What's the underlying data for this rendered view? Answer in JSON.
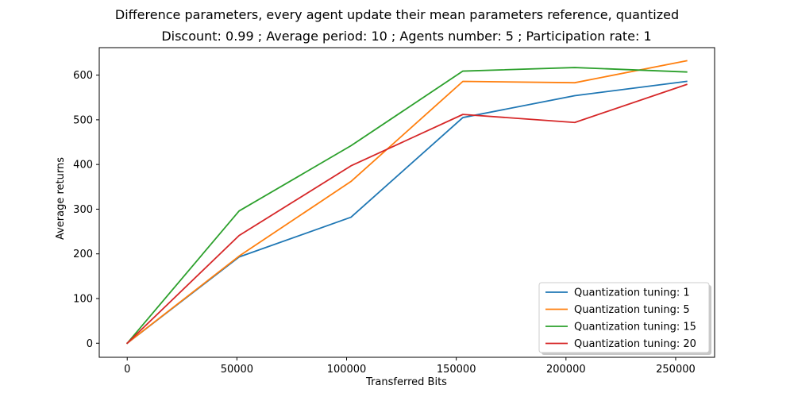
{
  "chart_data": {
    "type": "line",
    "suptitle": "Difference parameters, every agent update their mean parameters reference, quantized",
    "title": "Discount: 0.99 ; Average period: 10 ; Agents number: 5 ; Participation rate: 1",
    "xlabel": "Transferred Bits",
    "ylabel": "Average returns",
    "xlim": [
      -12750,
      267750
    ],
    "ylim": [
      -31.5,
      661.5
    ],
    "xticks": [
      0,
      50000,
      100000,
      150000,
      200000,
      250000
    ],
    "xtick_labels": [
      "0",
      "50000",
      "100000",
      "150000",
      "200000",
      "250000"
    ],
    "yticks": [
      0,
      100,
      200,
      300,
      400,
      500,
      600
    ],
    "ytick_labels": [
      "0",
      "100",
      "200",
      "300",
      "400",
      "500",
      "600"
    ],
    "grid": false,
    "legend_position": "lower-right",
    "x": [
      0,
      51000,
      102000,
      153000,
      204000,
      255000
    ],
    "series": [
      {
        "name": "Quantization tuning: 1",
        "color": "#1f77b4",
        "values": [
          0,
          193,
          282,
          505,
          554,
          586
        ]
      },
      {
        "name": "Quantization tuning: 5",
        "color": "#ff7f0e",
        "values": [
          0,
          195,
          362,
          586,
          583,
          632
        ]
      },
      {
        "name": "Quantization tuning: 15",
        "color": "#2ca02c",
        "values": [
          0,
          296,
          442,
          609,
          617,
          607
        ]
      },
      {
        "name": "Quantization tuning: 20",
        "color": "#d62728",
        "values": [
          0,
          241,
          397,
          512,
          494,
          579
        ]
      }
    ]
  }
}
